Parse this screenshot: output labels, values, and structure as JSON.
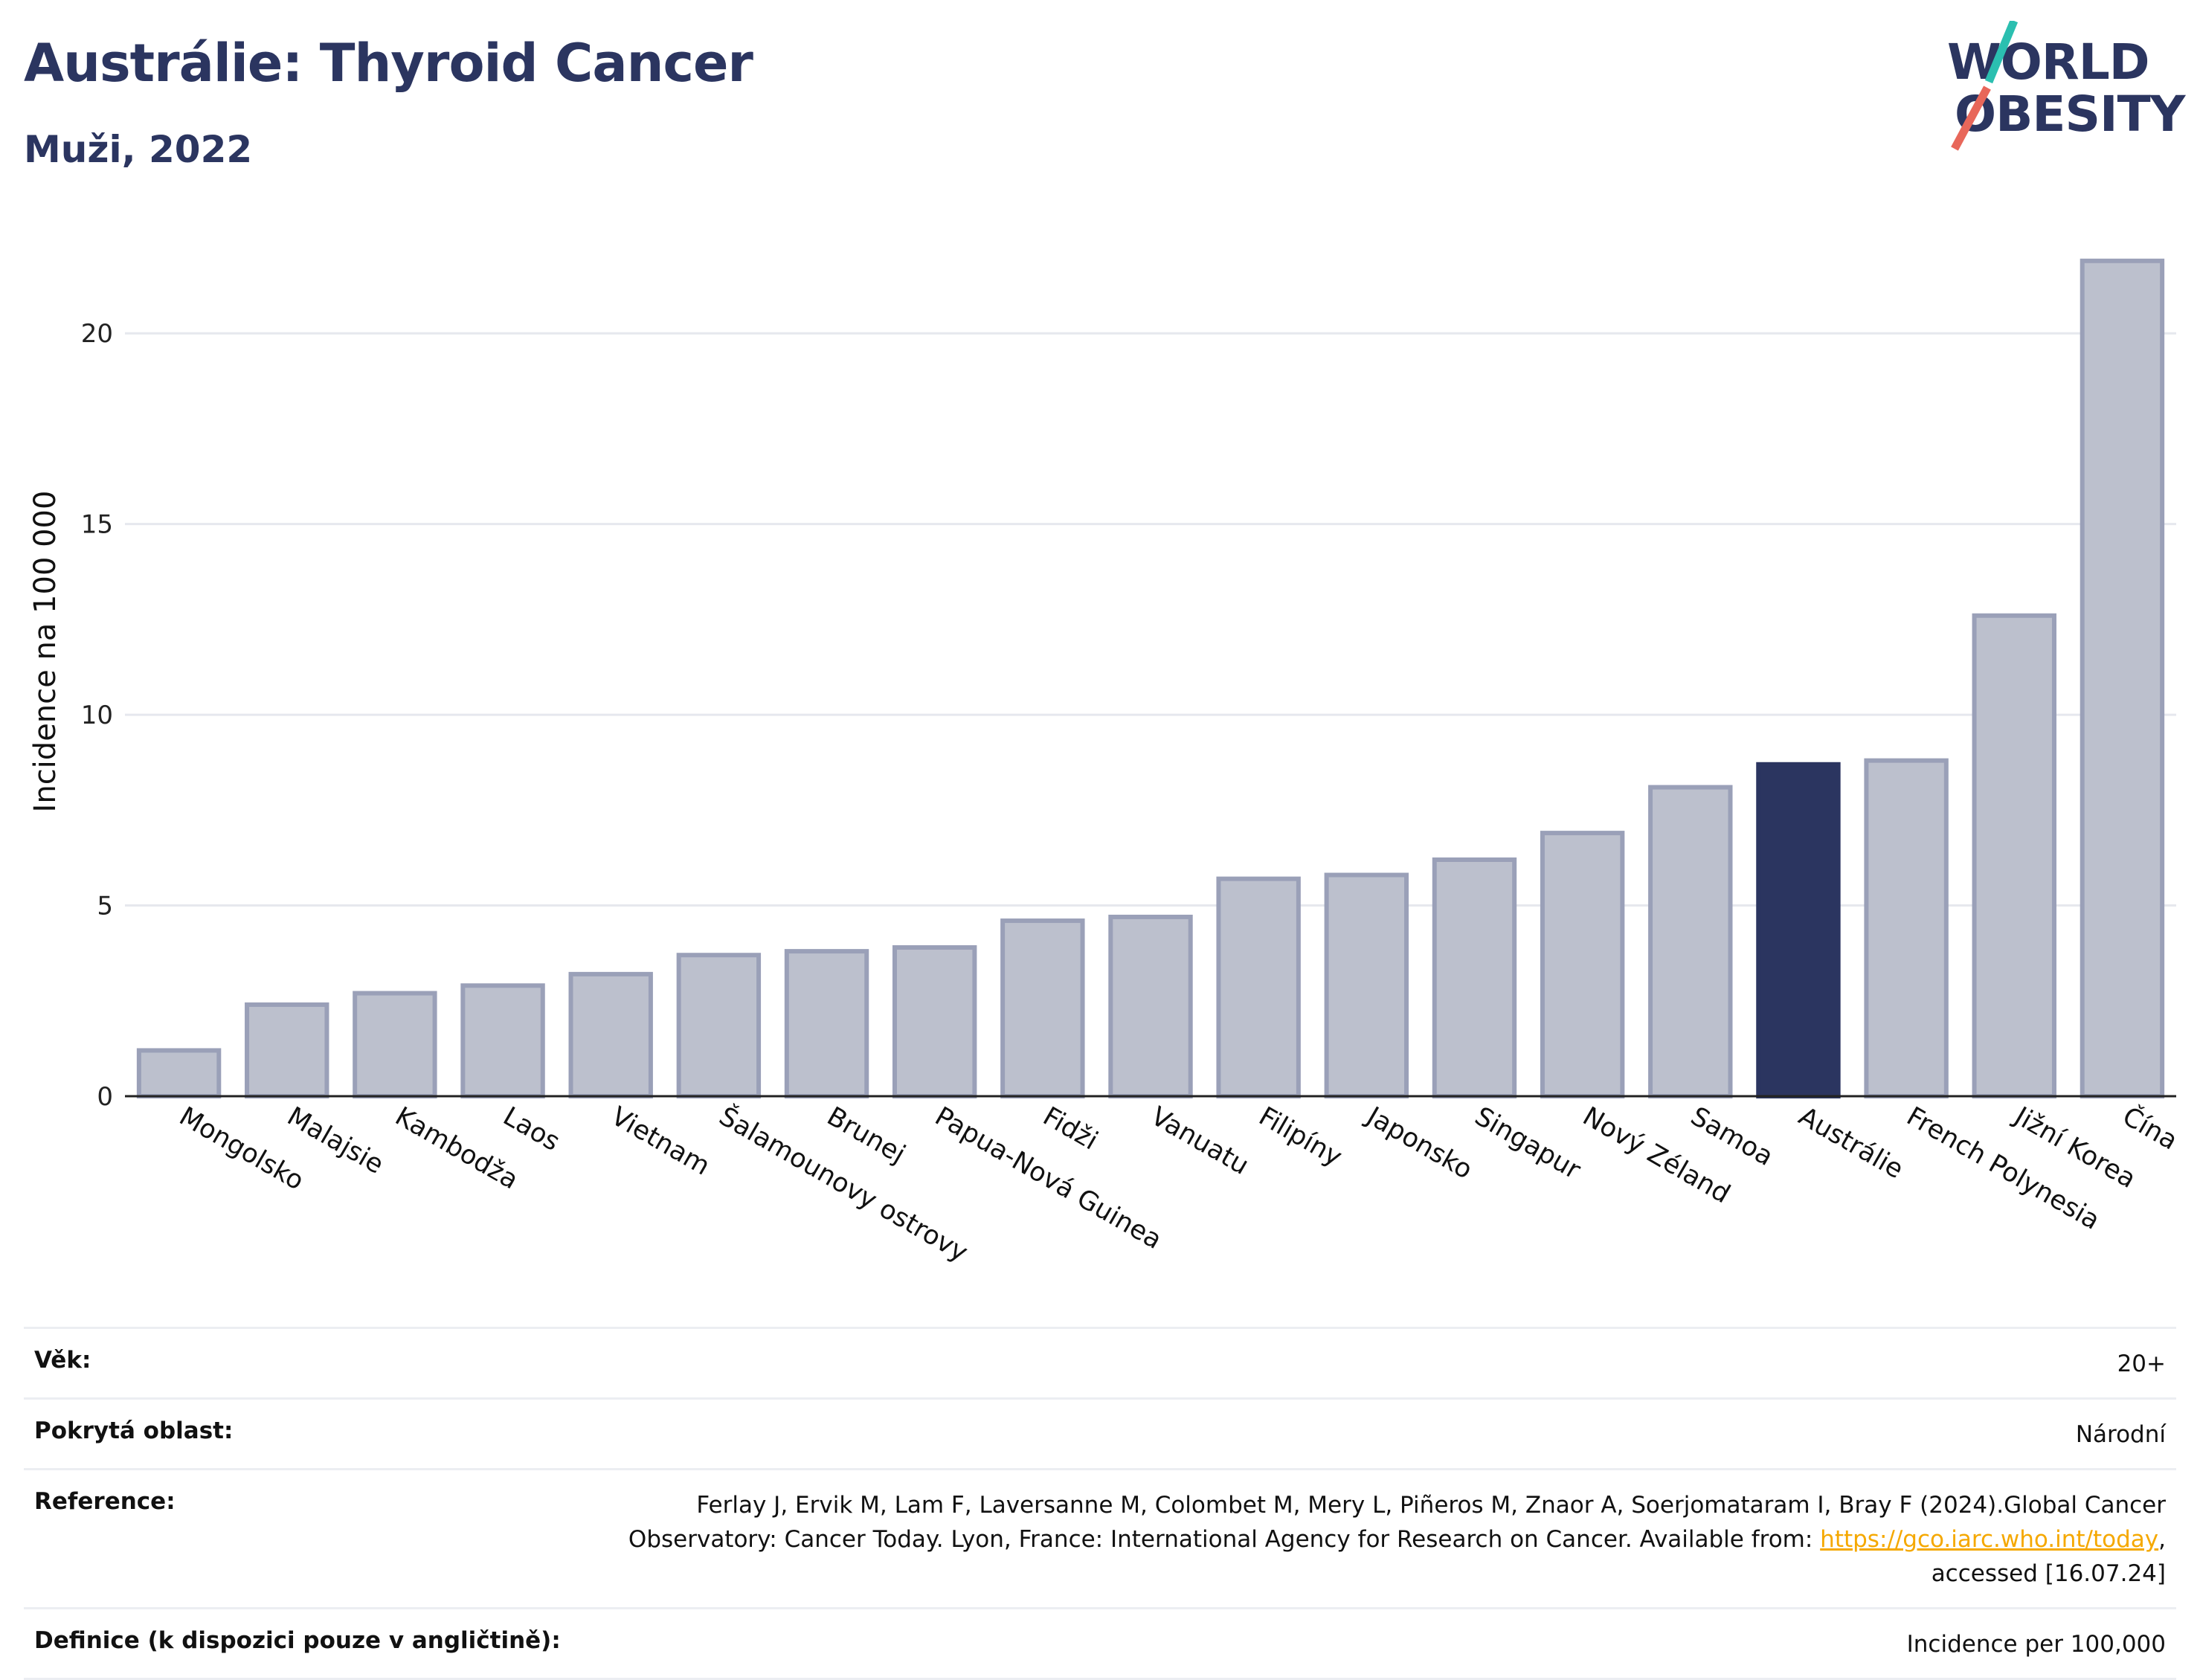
{
  "header": {
    "title": "Austrálie: Thyroid Cancer",
    "subtitle": "Muži, 2022"
  },
  "logo": {
    "line1": "WORLD",
    "line2": "OBESITY",
    "accent_colors": [
      "#2bbfb0",
      "#e8675a"
    ],
    "text_color": "#2b3560"
  },
  "chart_data": {
    "type": "bar",
    "ylabel": "Incidence na 100 000",
    "ylim": [
      0,
      22.5
    ],
    "yticks": [
      0,
      5,
      10,
      15,
      20
    ],
    "grid": true,
    "highlight": "Austrálie",
    "colors": {
      "bar": "#bcc0cd",
      "bar_edge": "#9aa0b8",
      "highlight": "#2b3560"
    },
    "categories": [
      "Mongolsko",
      "Malajsie",
      "Kambodža",
      "Laos",
      "Vietnam",
      "Šalamounovy ostrovy",
      "Brunej",
      "Papua-Nová Guinea",
      "Fidži",
      "Vanuatu",
      "Filipíny",
      "Japonsko",
      "Singapur",
      "Nový Zéland",
      "Samoa",
      "Austrálie",
      "French Polynesia",
      "Jižní Korea",
      "Čína"
    ],
    "values": [
      1.2,
      2.4,
      2.7,
      2.9,
      3.2,
      3.7,
      3.8,
      3.9,
      4.6,
      4.7,
      5.7,
      5.8,
      6.2,
      6.9,
      8.1,
      8.7,
      8.8,
      12.6,
      21.9
    ]
  },
  "meta": {
    "age_label": "Věk:",
    "age_value": "20+",
    "area_label": "Pokrytá oblast:",
    "area_value": "Národní",
    "ref_label": "Reference:",
    "ref_text": "Ferlay J, Ervik M, Lam F, Laversanne M, Colombet M, Mery L, Piñeros M, Znaor A, Soerjomataram I, Bray F (2024).Global Cancer Observatory: Cancer Today. Lyon, France: International Agency for Research on Cancer. Available from: ",
    "ref_link": "https://gco.iarc.who.int/today",
    "ref_suffix": ", accessed [16.07.24]",
    "def_label": "Definice (k dispozici pouze v angličtině):",
    "def_value": "Incidence per 100,000"
  }
}
